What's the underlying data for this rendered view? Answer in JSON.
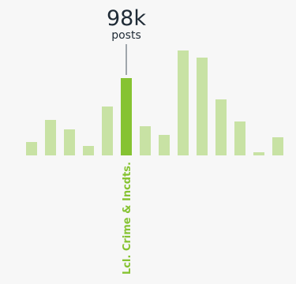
{
  "chart_data": {
    "type": "bar",
    "values": [
      17,
      45,
      33,
      12,
      62,
      98,
      37,
      26,
      133,
      124,
      71,
      43,
      4,
      23
    ],
    "highlight_index": 5,
    "highlight_category": "Lcl. Crime & Incdts.",
    "callout": {
      "value": "98k",
      "unit": "posts"
    },
    "ylim": [
      0,
      140
    ],
    "grid": false,
    "legend": "none",
    "colors": {
      "bar": "#c8e2a4",
      "highlight": "#86c332",
      "text": "#1f2b36",
      "leader": "#4a5560"
    }
  }
}
